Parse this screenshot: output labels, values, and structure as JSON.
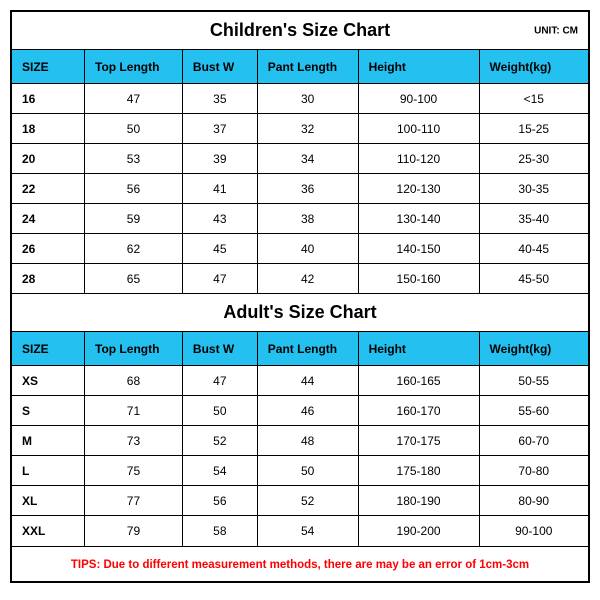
{
  "background_color": "#ffffff",
  "border_color": "#000000",
  "header_bg_color": "#24c1f0",
  "tips_color": "#ff0000",
  "columns": [
    "SIZE",
    "Top Length",
    "Bust W",
    "Pant Length",
    "Height",
    "Weight(kg)"
  ],
  "col_widths_pct": [
    12.5,
    17,
    13,
    17.5,
    21,
    19
  ],
  "tables": [
    {
      "title": "Children's Size Chart",
      "unit": "UNIT: CM",
      "rows": [
        [
          "16",
          "47",
          "35",
          "30",
          "90-100",
          "<15"
        ],
        [
          "18",
          "50",
          "37",
          "32",
          "100-110",
          "15-25"
        ],
        [
          "20",
          "53",
          "39",
          "34",
          "110-120",
          "25-30"
        ],
        [
          "22",
          "56",
          "41",
          "36",
          "120-130",
          "30-35"
        ],
        [
          "24",
          "59",
          "43",
          "38",
          "130-140",
          "35-40"
        ],
        [
          "26",
          "62",
          "45",
          "40",
          "140-150",
          "40-45"
        ],
        [
          "28",
          "65",
          "47",
          "42",
          "150-160",
          "45-50"
        ]
      ]
    },
    {
      "title": "Adult's Size Chart",
      "unit": "",
      "rows": [
        [
          "XS",
          "68",
          "47",
          "44",
          "160-165",
          "50-55"
        ],
        [
          "S",
          "71",
          "50",
          "46",
          "160-170",
          "55-60"
        ],
        [
          "M",
          "73",
          "52",
          "48",
          "170-175",
          "60-70"
        ],
        [
          "L",
          "75",
          "54",
          "50",
          "175-180",
          "70-80"
        ],
        [
          "XL",
          "77",
          "56",
          "52",
          "180-190",
          "80-90"
        ],
        [
          "XXL",
          "79",
          "58",
          "54",
          "190-200",
          "90-100"
        ]
      ]
    }
  ],
  "tips": "TIPS: Due to different measurement methods, there are may be an error of 1cm-3cm"
}
